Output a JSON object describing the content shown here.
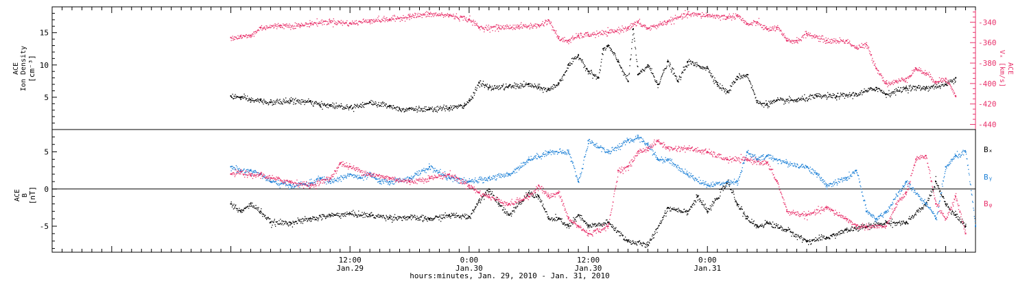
{
  "colors": {
    "black": "#000000",
    "pink": "#e8306a",
    "blue": "#1a7fd6"
  },
  "x_axis": {
    "range_hours": [
      -18,
      75
    ],
    "ticks": [
      {
        "h": 12,
        "time": "12:00",
        "date": "Jan.29"
      },
      {
        "h": 24,
        "time": "0:00",
        "date": "Jan.30"
      },
      {
        "h": 36,
        "time": "12:00",
        "date": "Jan.30"
      },
      {
        "h": 48,
        "time": "0:00",
        "date": "Jan.31"
      }
    ],
    "label": "hours:minutes, Jan. 29, 2010 - Jan. 31, 2010"
  },
  "chart_data": [
    {
      "type": "scatter",
      "panel": "top",
      "ylabel_left": [
        "ACE",
        "Ion Density",
        "[cm⁻³]"
      ],
      "ylabel_right": [
        "ACE",
        "Vₓ [km/s]"
      ],
      "ylim_left": [
        0,
        19
      ],
      "ylim_right": [
        -445,
        -325
      ],
      "left_ticks": [
        5,
        10,
        15
      ],
      "right_ticks": [
        -340,
        -360,
        -380,
        -400,
        -420,
        -440
      ],
      "series": [
        {
          "axis": "left",
          "color": "black",
          "points": [
            [
              0,
              5.2
            ],
            [
              1,
              5
            ],
            [
              2,
              4.6
            ],
            [
              3,
              4.5
            ],
            [
              4,
              4.2
            ],
            [
              6,
              4.5
            ],
            [
              8,
              4.3
            ],
            [
              9,
              3.8
            ],
            [
              10,
              3.8
            ],
            [
              12,
              3.5
            ],
            [
              14,
              4.2
            ],
            [
              16,
              3.7
            ],
            [
              17,
              3.2
            ],
            [
              18,
              3.3
            ],
            [
              20,
              3.1
            ],
            [
              22,
              3.4
            ],
            [
              23.5,
              3.7
            ],
            [
              24,
              4.5
            ],
            [
              25,
              7.3
            ],
            [
              26,
              6.5
            ],
            [
              28,
              6.7
            ],
            [
              30,
              7
            ],
            [
              31,
              6.5
            ],
            [
              32,
              6.2
            ],
            [
              33,
              7.2
            ],
            [
              34,
              10
            ],
            [
              35,
              11.5
            ],
            [
              36,
              9
            ],
            [
              37,
              8
            ],
            [
              37.5,
              12.5
            ],
            [
              38,
              13
            ],
            [
              39,
              10.5
            ],
            [
              40,
              7.5
            ],
            [
              40.5,
              15.5
            ],
            [
              41,
              8.5
            ],
            [
              42,
              10
            ],
            [
              43,
              7
            ],
            [
              44,
              10.5
            ],
            [
              45,
              7.5
            ],
            [
              46,
              10.5
            ],
            [
              48,
              9.5
            ],
            [
              49,
              7
            ],
            [
              50,
              5.8
            ],
            [
              51,
              8.2
            ],
            [
              52,
              8.5
            ],
            [
              53,
              4.2
            ],
            [
              54,
              4
            ],
            [
              55,
              4.5
            ],
            [
              57,
              4.6
            ],
            [
              59,
              5.2
            ],
            [
              61,
              5.2
            ],
            [
              63,
              5.5
            ],
            [
              65,
              6.5
            ],
            [
              66,
              5.5
            ],
            [
              68,
              6.5
            ],
            [
              70,
              6.5
            ],
            [
              72,
              7
            ],
            [
              73,
              8
            ]
          ]
        },
        {
          "axis": "right",
          "color": "pink",
          "points": [
            [
              0,
              -355
            ],
            [
              1,
              -354
            ],
            [
              2,
              -353
            ],
            [
              3,
              -345
            ],
            [
              5,
              -343
            ],
            [
              7,
              -343
            ],
            [
              8,
              -341
            ],
            [
              10,
              -339
            ],
            [
              12,
              -341
            ],
            [
              14,
              -338
            ],
            [
              16,
              -337
            ],
            [
              18,
              -334
            ],
            [
              20,
              -332
            ],
            [
              22,
              -333
            ],
            [
              24,
              -337
            ],
            [
              25,
              -345
            ],
            [
              27,
              -345
            ],
            [
              29,
              -344
            ],
            [
              31,
              -343
            ],
            [
              32,
              -338
            ],
            [
              33,
              -356
            ],
            [
              34,
              -358
            ],
            [
              35,
              -353
            ],
            [
              36,
              -352
            ],
            [
              38,
              -350
            ],
            [
              40,
              -345
            ],
            [
              41,
              -340
            ],
            [
              42,
              -346
            ],
            [
              44,
              -339
            ],
            [
              46,
              -332
            ],
            [
              48,
              -333
            ],
            [
              50,
              -335
            ],
            [
              51,
              -333
            ],
            [
              52,
              -342
            ],
            [
              53,
              -340
            ],
            [
              54,
              -347
            ],
            [
              55,
              -345
            ],
            [
              56,
              -358
            ],
            [
              57,
              -358
            ],
            [
              58,
              -351
            ],
            [
              60,
              -358
            ],
            [
              62,
              -358
            ],
            [
              63,
              -365
            ],
            [
              64,
              -362
            ],
            [
              65,
              -385
            ],
            [
              66,
              -400
            ],
            [
              67,
              -398
            ],
            [
              68,
              -395
            ],
            [
              69,
              -385
            ],
            [
              70,
              -390
            ],
            [
              71,
              -398
            ],
            [
              72,
              -395
            ],
            [
              73,
              -412
            ]
          ]
        }
      ]
    },
    {
      "type": "scatter",
      "panel": "bottom",
      "ylabel_left": [
        "ACE",
        "B",
        "[nT]"
      ],
      "ylim_left": [
        -8.5,
        8
      ],
      "left_ticks": [
        -5,
        0,
        5
      ],
      "zero_line": true,
      "series": [
        {
          "name": "Bₓ",
          "color": "black",
          "points": [
            [
              0,
              -2
            ],
            [
              1,
              -3
            ],
            [
              2,
              -2
            ],
            [
              3,
              -3
            ],
            [
              4,
              -4.5
            ],
            [
              6,
              -4.5
            ],
            [
              8,
              -4
            ],
            [
              10,
              -3.5
            ],
            [
              12,
              -3.3
            ],
            [
              14,
              -3.5
            ],
            [
              16,
              -3.8
            ],
            [
              18,
              -3.8
            ],
            [
              20,
              -4
            ],
            [
              22,
              -3.5
            ],
            [
              24,
              -3.7
            ],
            [
              25,
              -1.5
            ],
            [
              26,
              0
            ],
            [
              27,
              -2
            ],
            [
              28,
              -3.5
            ],
            [
              30,
              -0.5
            ],
            [
              31,
              -1
            ],
            [
              32,
              -4
            ],
            [
              33,
              -4
            ],
            [
              34,
              -5
            ],
            [
              35,
              -3.5
            ],
            [
              36,
              -5
            ],
            [
              38,
              -4.5
            ],
            [
              40,
              -7
            ],
            [
              42,
              -7.5
            ],
            [
              44,
              -2.5
            ],
            [
              46,
              -3
            ],
            [
              47,
              -1
            ],
            [
              48,
              -3
            ],
            [
              50,
              1
            ],
            [
              51,
              -2
            ],
            [
              52,
              -4
            ],
            [
              53,
              -5
            ],
            [
              54,
              -4.5
            ],
            [
              56,
              -5.5
            ],
            [
              58,
              -7
            ],
            [
              60,
              -6.5
            ],
            [
              62,
              -5.5
            ],
            [
              64,
              -5
            ],
            [
              66,
              -4.5
            ],
            [
              68,
              -4.5
            ],
            [
              70,
              -2
            ],
            [
              71,
              1
            ],
            [
              72,
              -2
            ],
            [
              73,
              -3.5
            ],
            [
              74,
              -5
            ]
          ]
        },
        {
          "name": "Bᵧ",
          "color": "blue",
          "points": [
            [
              0,
              3
            ],
            [
              1,
              2.5
            ],
            [
              2,
              2.5
            ],
            [
              3,
              2
            ],
            [
              4,
              1
            ],
            [
              6,
              0.5
            ],
            [
              8,
              0.8
            ],
            [
              9,
              1.5
            ],
            [
              10,
              1
            ],
            [
              12,
              2
            ],
            [
              13,
              1.5
            ],
            [
              14,
              2
            ],
            [
              15,
              1
            ],
            [
              16,
              1
            ],
            [
              18,
              1.5
            ],
            [
              20,
              3
            ],
            [
              22,
              1.5
            ],
            [
              24,
              1
            ],
            [
              26,
              1.5
            ],
            [
              28,
              2
            ],
            [
              30,
              4
            ],
            [
              32,
              5
            ],
            [
              34,
              5
            ],
            [
              35,
              1
            ],
            [
              36,
              6.5
            ],
            [
              38,
              5
            ],
            [
              40,
              6.5
            ],
            [
              41,
              7
            ],
            [
              42,
              6
            ],
            [
              43,
              4
            ],
            [
              44,
              4
            ],
            [
              46,
              2
            ],
            [
              48,
              0.5
            ],
            [
              50,
              1
            ],
            [
              51,
              1
            ],
            [
              52,
              5
            ],
            [
              53,
              4
            ],
            [
              54,
              4.5
            ],
            [
              56,
              3.5
            ],
            [
              58,
              3
            ],
            [
              59,
              2
            ],
            [
              60,
              0.5
            ],
            [
              62,
              1.5
            ],
            [
              63,
              2.5
            ],
            [
              64,
              -3
            ],
            [
              65,
              -4
            ],
            [
              66,
              -3
            ],
            [
              68,
              1
            ],
            [
              70,
              -2
            ],
            [
              71,
              -4
            ],
            [
              72,
              3
            ],
            [
              73,
              4.5
            ],
            [
              74,
              5
            ],
            [
              75,
              -5
            ]
          ]
        },
        {
          "name": "Bᵩ",
          "color": "pink",
          "points": [
            [
              0,
              2
            ],
            [
              1,
              2.3
            ],
            [
              2,
              1.8
            ],
            [
              3,
              2
            ],
            [
              4,
              1.5
            ],
            [
              6,
              1
            ],
            [
              8,
              0.5
            ],
            [
              10,
              1.5
            ],
            [
              11,
              3.5
            ],
            [
              12,
              3
            ],
            [
              14,
              2
            ],
            [
              16,
              1.5
            ],
            [
              18,
              1
            ],
            [
              20,
              1.5
            ],
            [
              22,
              2
            ],
            [
              24,
              0.5
            ],
            [
              25,
              -0.5
            ],
            [
              26,
              -1
            ],
            [
              28,
              -2
            ],
            [
              30,
              -1
            ],
            [
              31,
              0.5
            ],
            [
              32,
              -1
            ],
            [
              33,
              -0.5
            ],
            [
              34,
              -4
            ],
            [
              35,
              -5
            ],
            [
              36,
              -6
            ],
            [
              38,
              -5
            ],
            [
              39,
              2.5
            ],
            [
              40,
              3
            ],
            [
              41,
              5
            ],
            [
              42,
              5.5
            ],
            [
              43,
              6.5
            ],
            [
              44,
              5.5
            ],
            [
              46,
              5.5
            ],
            [
              48,
              5
            ],
            [
              50,
              4
            ],
            [
              52,
              4
            ],
            [
              54,
              3.5
            ],
            [
              55,
              1
            ],
            [
              56,
              -3
            ],
            [
              58,
              -3.5
            ],
            [
              60,
              -2.5
            ],
            [
              62,
              -4
            ],
            [
              63,
              -5
            ],
            [
              64,
              -5
            ],
            [
              66,
              -5
            ],
            [
              67,
              -2
            ],
            [
              68,
              -0.5
            ],
            [
              69,
              4
            ],
            [
              70,
              4.5
            ],
            [
              71,
              -2
            ],
            [
              72,
              -4
            ],
            [
              73,
              -1
            ],
            [
              74,
              -6
            ]
          ]
        }
      ]
    }
  ]
}
